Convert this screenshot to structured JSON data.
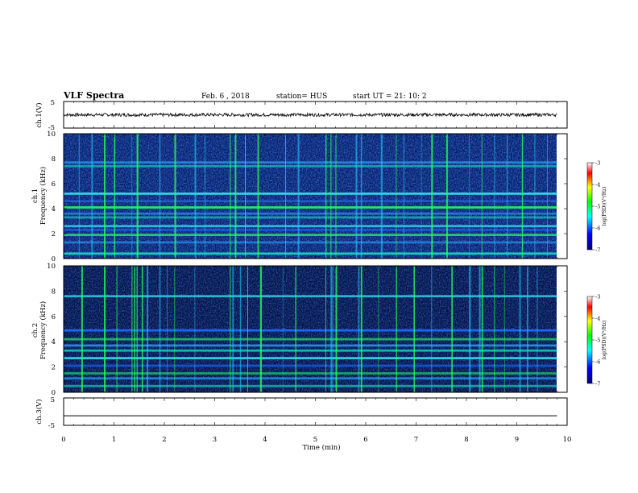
{
  "header": {
    "title": "VLF Spectra",
    "date": "Feb. 6  , 2018",
    "station": "station= HUS",
    "start": "start  UT  =   21: 10: 2"
  },
  "chart_data": [
    {
      "type": "line",
      "panel": "ch1-waveform",
      "ylabel": "ch.1(V)",
      "yticks": [
        "5",
        "-5"
      ],
      "ylim": [
        -5,
        5
      ],
      "xlim": [
        0,
        10
      ],
      "data_end_min": 9.8,
      "trace": "noisy waveform centered near 0 V, roughly ±0.6 V"
    },
    {
      "type": "heatmap",
      "panel": "ch1-spectrogram",
      "ylabel_line1": "ch.1",
      "ylabel_line2": "Frequency (kHz)",
      "yticks": [
        "0",
        "2",
        "4",
        "6",
        "8",
        "10"
      ],
      "ylim": [
        0,
        10
      ],
      "xlim": [
        0,
        10
      ],
      "data_end_min": 9.8,
      "bands_khz": [
        0.4,
        1.3,
        1.9,
        2.3,
        2.6,
        3.3,
        3.6,
        4.1,
        4.6,
        5.2,
        7.4,
        7.7
      ],
      "impulses_min": [
        0.3,
        0.55,
        0.8,
        1.0,
        1.35,
        1.45,
        1.9,
        2.2,
        2.6,
        2.8,
        3.3,
        3.4,
        3.6,
        3.85,
        4.4,
        4.65,
        5.2,
        5.3,
        5.4,
        5.8,
        5.9,
        6.3,
        6.6,
        6.75,
        7.1,
        7.3,
        7.6,
        8.05,
        8.3,
        8.55,
        8.8,
        9.1,
        9.35,
        9.6
      ],
      "colorbar": {
        "label": "log(PSD)(V²/Hz)",
        "ticks": [
          "-3",
          "-4",
          "-5",
          "-6",
          "-7"
        ],
        "range": [
          -7,
          -3
        ]
      }
    },
    {
      "type": "heatmap",
      "panel": "ch2-spectrogram",
      "ylabel_line1": "ch.2",
      "ylabel_line2": "Frequency (kHz)",
      "yticks": [
        "0",
        "2",
        "4",
        "6",
        "8",
        "10"
      ],
      "ylim": [
        0,
        10
      ],
      "xlim": [
        0,
        10
      ],
      "data_end_min": 9.8,
      "bands_khz": [
        0.5,
        1.1,
        1.5,
        2.1,
        2.7,
        3.3,
        3.7,
        4.2,
        4.9,
        7.6
      ],
      "impulses_min": [
        0.35,
        0.8,
        1.05,
        1.35,
        1.4,
        1.45,
        1.55,
        1.65,
        1.9,
        2.05,
        2.2,
        2.6,
        3.3,
        3.35,
        3.5,
        3.65,
        3.9,
        4.35,
        4.6,
        5.2,
        5.3,
        5.35,
        5.4,
        5.85,
        5.9,
        6.25,
        6.6,
        6.95,
        7.3,
        7.7,
        8.05,
        8.25,
        8.3,
        8.55,
        8.75,
        9.05,
        9.2,
        9.4
      ],
      "colorbar": {
        "label": "log(PSD)(V²/Hz)",
        "ticks": [
          "-3",
          "-4",
          "-5",
          "-6",
          "-7"
        ],
        "range": [
          -7,
          -3
        ]
      }
    },
    {
      "type": "line",
      "panel": "ch3-waveform",
      "ylabel": "ch.3(V)",
      "yticks": [
        "5",
        "-5"
      ],
      "ylim": [
        -5,
        5
      ],
      "xlim": [
        0,
        10
      ],
      "data_end_min": 9.8,
      "trace": "flat line at about -1.5 V"
    }
  ],
  "xaxis": {
    "label": "Time (min)",
    "ticks": [
      "0",
      "1",
      "2",
      "3",
      "4",
      "5",
      "6",
      "7",
      "8",
      "9",
      "10"
    ]
  },
  "colors": {
    "spectro_background": "#07185e",
    "colormap": [
      "#000080",
      "#0000ff",
      "#00ffff",
      "#00ff00",
      "#ffff00",
      "#ff0000",
      "#ffffff"
    ]
  }
}
